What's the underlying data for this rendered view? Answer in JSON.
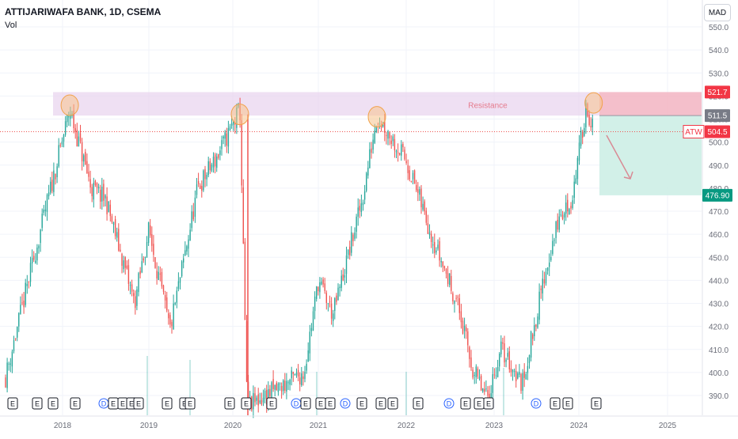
{
  "header": {
    "title": "ATTIJARIWAFA BANK, 1D, CSEMA",
    "indicator": "Vol",
    "currency": "MAD"
  },
  "colors": {
    "up": "#26a69a",
    "down": "#ef5350",
    "resistance_zone": "#e9d5ef",
    "stop_zone": "#f4b9c3",
    "target_zone": "#cdeee6",
    "highlight_circle": "#f7c38a",
    "arrow": "#d88b95",
    "current_price_line": "#ef5350"
  },
  "chart_data": {
    "type": "candlestick",
    "symbol": "ATW",
    "x": [
      "2018",
      "2019",
      "2020",
      "2021",
      "2022",
      "2023",
      "2024",
      "2025"
    ],
    "y_ticks": [
      390,
      400,
      410,
      420,
      430,
      440,
      450,
      460,
      470,
      480,
      490,
      500,
      510,
      520,
      530,
      540,
      550
    ],
    "ylim": [
      385,
      553
    ],
    "y_scale": "linear",
    "grid": true,
    "price_path": [
      {
        "date": "2017-05",
        "price": 398
      },
      {
        "date": "2017-09",
        "price": 450
      },
      {
        "date": "2018-02",
        "price": 514
      },
      {
        "date": "2018-05",
        "price": 480
      },
      {
        "date": "2018-07",
        "price": 475
      },
      {
        "date": "2018-11",
        "price": 430
      },
      {
        "date": "2019-01",
        "price": 462
      },
      {
        "date": "2019-04",
        "price": 418
      },
      {
        "date": "2019-08",
        "price": 480
      },
      {
        "date": "2019-11",
        "price": 495
      },
      {
        "date": "2020-02",
        "price": 514
      },
      {
        "date": "2020-03",
        "price": 385
      },
      {
        "date": "2020-11",
        "price": 400
      },
      {
        "date": "2021-01",
        "price": 440
      },
      {
        "date": "2021-03",
        "price": 425
      },
      {
        "date": "2021-07",
        "price": 475
      },
      {
        "date": "2021-09",
        "price": 512
      },
      {
        "date": "2022-01",
        "price": 492
      },
      {
        "date": "2022-05",
        "price": 455
      },
      {
        "date": "2022-08",
        "price": 430
      },
      {
        "date": "2022-10",
        "price": 402
      },
      {
        "date": "2022-12",
        "price": 388
      },
      {
        "date": "2023-02",
        "price": 410
      },
      {
        "date": "2023-05",
        "price": 395
      },
      {
        "date": "2023-08",
        "price": 440
      },
      {
        "date": "2023-10",
        "price": 465
      },
      {
        "date": "2023-12",
        "price": 475
      },
      {
        "date": "2024-02",
        "price": 516
      },
      {
        "date": "2024-03",
        "price": 504.5
      }
    ],
    "price_labels": {
      "resistance_top": "521.7",
      "resistance_bottom": "511.5",
      "symbol_tag": "ATW",
      "current": "504.5",
      "target": "476.90"
    },
    "levels": {
      "resistance_top": 521.7,
      "resistance_bottom": 511.5,
      "current": 504.5,
      "target": 476.9
    },
    "annotations": {
      "resistance_label": "Resistance",
      "peak_circles": [
        {
          "date": "2018-02",
          "price": 516
        },
        {
          "date": "2020-02",
          "price": 512
        },
        {
          "date": "2021-09",
          "price": 511
        },
        {
          "date": "2024-03",
          "price": 517
        }
      ]
    },
    "event_markers": [
      "E",
      "E",
      "E",
      "E",
      "D",
      "E",
      "E",
      "E",
      "E",
      "E",
      "E",
      "E",
      "E",
      "E",
      "E",
      "D",
      "E",
      "E",
      "E",
      "D",
      "E",
      "E",
      "E",
      "E",
      "D",
      "E",
      "E",
      "E",
      "D",
      "E",
      "E",
      "E",
      "E"
    ]
  }
}
